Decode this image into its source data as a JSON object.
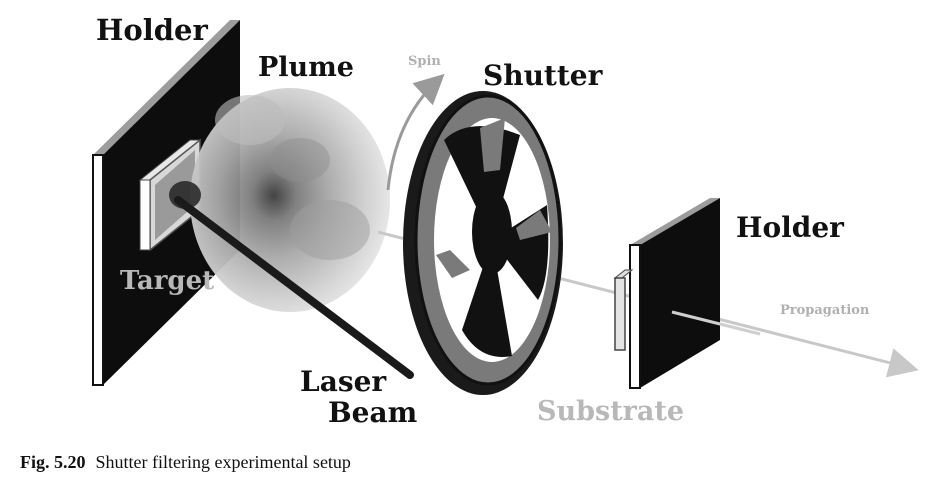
{
  "labels": {
    "holder_left": "Holder",
    "plume": "Plume",
    "spin": "Spin",
    "shutter": "Shutter",
    "holder_right": "Holder",
    "target": "Target",
    "propagation": "Propagation",
    "laser_line1": "Laser",
    "laser_line2": "Beam",
    "substrate": "Substrate"
  },
  "caption": {
    "number": "Fig. 5.20",
    "text": "Shutter filtering experimental setup"
  }
}
